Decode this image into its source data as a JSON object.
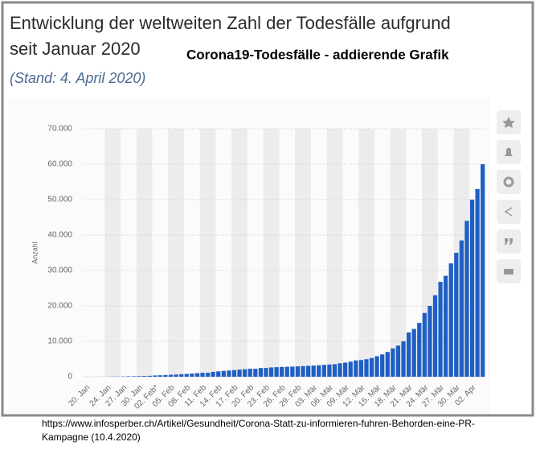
{
  "chart_data": {
    "type": "bar",
    "title": [
      "Entwicklung der weltweiten Zahl der Todesfälle aufgrund",
      "seit Januar 2020"
    ],
    "overlay_title": "Corona19-Todesfälle - addierende Grafik",
    "subtitle": "(Stand: 4. April 2020)",
    "y_label": "Anzahl",
    "categories": [
      "20. Jan",
      null,
      null,
      null,
      "24. Jan",
      null,
      null,
      "27. Jan",
      null,
      null,
      "30. Jan",
      null,
      null,
      "02. Feb*",
      null,
      null,
      "05. Feb",
      null,
      null,
      "08. Feb",
      null,
      null,
      "11. Feb",
      null,
      null,
      "14. Feb",
      null,
      null,
      "17. Feb",
      null,
      null,
      "20. Feb",
      null,
      null,
      "23. Feb",
      null,
      null,
      "26. Feb",
      null,
      null,
      "29. Feb",
      null,
      null,
      "03. Mär",
      null,
      null,
      "06. Mär",
      null,
      null,
      "09. Mär",
      null,
      null,
      "12. Mär",
      null,
      null,
      "15. Mär",
      null,
      null,
      "18. Mär",
      null,
      null,
      "21. Mär",
      null,
      null,
      "24. Mär",
      null,
      null,
      "27. Mär",
      null,
      null,
      "30. Mär",
      null,
      null,
      "02. Apr",
      null,
      null
    ],
    "values": [
      6,
      9,
      17,
      18,
      26,
      42,
      56,
      82,
      131,
      133,
      171,
      213,
      259,
      362,
      426,
      492,
      564,
      634,
      719,
      806,
      906,
      1013,
      1113,
      1118,
      1371,
      1523,
      1666,
      1770,
      1868,
      2007,
      2122,
      2247,
      2251,
      2458,
      2469,
      2629,
      2708,
      2770,
      2814,
      2872,
      2941,
      2996,
      3085,
      3160,
      3254,
      3348,
      3460,
      3558,
      3802,
      3988,
      4262,
      4615,
      4720,
      4950,
      5300,
      5800,
      6300,
      7000,
      8000,
      8800,
      10000,
      12500,
      13500,
      15200,
      18000,
      20000,
      23000,
      26800,
      28500,
      32000,
      35000,
      38500,
      44000,
      50000,
      53000,
      60000
    ],
    "color": "#1f5fc4",
    "ylim": [
      0,
      70000
    ],
    "yticks": [
      0,
      {
        "value": 10000,
        "label": "10.000"
      },
      {
        "value": 20000,
        "label": "20.000"
      },
      {
        "value": 30000,
        "label": "30.000"
      },
      {
        "value": 40000,
        "label": "40.000"
      },
      {
        "value": 50000,
        "label": "50.000"
      },
      {
        "value": 60000,
        "label": "60.000"
      },
      {
        "value": 70000,
        "label": "70.000"
      }
    ],
    "grid": true,
    "source": [
      "https://www.infosperber.ch/Artikel/Gesundheit/Corona-Statt-zu-informieren-fuhren-Behorden-eine-PR-",
      "Kampagne (10.4.2020)"
    ]
  }
}
